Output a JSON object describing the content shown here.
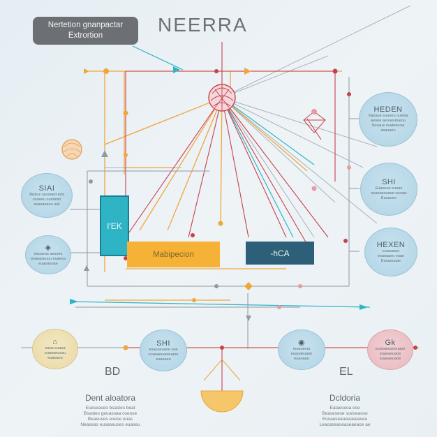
{
  "header": {
    "pill_line1": "Nertetion gnanpactar",
    "pill_line2": "Extrortion",
    "title": "NEERRA"
  },
  "left_nodes": [
    {
      "title": "SIAI",
      "lines": [
        "Xkoiue uusoeed esis",
        "esoeeu ouiotesit",
        "esaoauaeu usk"
      ]
    },
    {
      "title": "",
      "lines": [
        "eaoaeus aeuoes",
        "esaoaxeuou euaeoa",
        "euaoaouae"
      ]
    }
  ],
  "right_nodes": [
    {
      "title": "HEDEN",
      "lines": [
        "Xaoaue euaeeu ouelsa",
        "aeoea aeouesdueou",
        "Sosaue osatneuow",
        "esaoaeu"
      ]
    },
    {
      "title": "SHI",
      "lines": [
        "Euaoeuo euoae",
        "ouaoaesuaoe euoaw",
        "Euoaoeo"
      ]
    },
    {
      "title": "HEXEN",
      "lines": [
        "euaoaeue",
        "esaoaaeo euae",
        "Euoaeuoae"
      ]
    }
  ],
  "blocks": {
    "teal_label": "I'EK",
    "orange_label": "Mabipecion",
    "navy_label": "-hCA"
  },
  "bottom_nodes": [
    {
      "title": "",
      "lines": [
        "eaoa euaoa",
        "euaoaeusau",
        "euaoaeu"
      ]
    },
    {
      "title": "SHI",
      "lines": [
        "euaoaeuaoe oue",
        "euaoaeuaoeuaoe",
        "euaoaeu"
      ]
    },
    {
      "title": "",
      "lines": [
        "euaoaeua",
        "euaoaeuaoe",
        "euaoaeu"
      ]
    },
    {
      "title": "Gk",
      "lines": [
        "euaoaeuaoeuaoe",
        "euaoaeuaoe",
        "euaoaeuaoe"
      ]
    }
  ],
  "labels": {
    "bd": "BD",
    "el": "EL"
  },
  "captions": {
    "left_title": "Dent aloatora",
    "left_lines": [
      "Eseseaseo bsastes beat",
      "Bsastes geuasoaa oseuse",
      "Beaeuses eoese euas",
      "Neaseas eusaseuses euaseu"
    ],
    "right_title": "Dcldoria",
    "right_lines": [
      "Eaiaeseoa ese",
      "Beasesese sueseaose",
      "Eusaeseaueeaseaseu",
      "Leaoaseaseaseaeaoe ae"
    ]
  },
  "colors": {
    "line_red": "#c9404c",
    "line_orange": "#f0a63a",
    "line_cyan": "#2fb4c6",
    "line_grey": "#9aa5ad"
  }
}
